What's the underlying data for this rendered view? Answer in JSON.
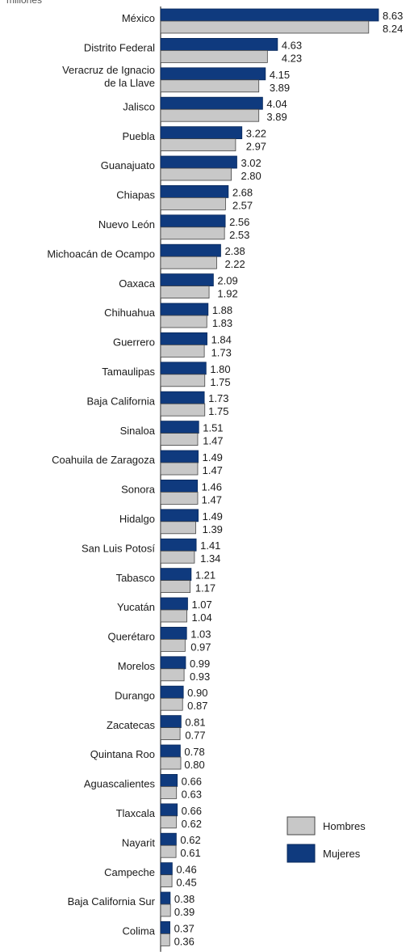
{
  "chart_data": {
    "type": "bar",
    "orientation": "horizontal",
    "unit_label": "millones",
    "categories": [
      "México",
      "Distrito Federal",
      "Veracruz de Ignacio de la Llave",
      "Jalisco",
      "Puebla",
      "Guanajuato",
      "Chiapas",
      "Nuevo León",
      "Michoacán de Ocampo",
      "Oaxaca",
      "Chihuahua",
      "Guerrero",
      "Tamaulipas",
      "Baja California",
      "Sinaloa",
      "Coahuila de Zaragoza",
      "Sonora",
      "Hidalgo",
      "San Luis Potosí",
      "Tabasco",
      "Yucatán",
      "Querétaro",
      "Morelos",
      "Durango",
      "Zacatecas",
      "Quintana Roo",
      "Aguascalientes",
      "Tlaxcala",
      "Nayarit",
      "Campeche",
      "Baja California Sur",
      "Colima"
    ],
    "series": [
      {
        "name": "Mujeres",
        "color": "#0f3a7e",
        "values": [
          8.63,
          4.63,
          4.15,
          4.04,
          3.22,
          3.02,
          2.68,
          2.56,
          2.38,
          2.09,
          1.88,
          1.84,
          1.8,
          1.73,
          1.51,
          1.49,
          1.46,
          1.49,
          1.41,
          1.21,
          1.07,
          1.03,
          0.99,
          0.9,
          0.81,
          0.78,
          0.66,
          0.66,
          0.62,
          0.46,
          0.38,
          0.37
        ],
        "labels": [
          "8.63",
          "4.63",
          "4.15",
          "4.04",
          "3.22",
          "3.02",
          "2.68",
          "2.56",
          "2.38",
          "2.09",
          "1.88",
          "1.84",
          "1.80",
          "1.73",
          "1.51",
          "1.49",
          "1.46",
          "1.49",
          "1.41",
          "1.21",
          "1.07",
          "1.03",
          "0.99",
          "0.90",
          "0.81",
          "0.78",
          "0.66",
          "0.66",
          "0.62",
          "0.46",
          "0.38",
          "0.37"
        ]
      },
      {
        "name": "Hombres",
        "color": "#c8c8c8",
        "values": [
          8.24,
          4.23,
          3.89,
          3.89,
          2.97,
          2.8,
          2.57,
          2.53,
          2.22,
          1.92,
          1.83,
          1.73,
          1.75,
          1.75,
          1.47,
          1.47,
          1.47,
          1.39,
          1.34,
          1.17,
          1.04,
          0.97,
          0.93,
          0.87,
          0.77,
          0.8,
          0.63,
          0.62,
          0.61,
          0.45,
          0.39,
          0.36
        ],
        "labels": [
          "8.24",
          "4.23",
          "3.89",
          "3.89",
          "2.97",
          "2.80",
          "2.57",
          "2.53",
          "2.22",
          "1.92",
          "1.83",
          "1.73",
          "1.75",
          "1.75",
          "1.47",
          "1.47",
          "1.47",
          "1.39",
          "1.34",
          "1.17",
          "1.04",
          "0.97",
          "0.93",
          "0.87",
          "0.77",
          "0.80",
          "0.63",
          "0.62",
          "0.61",
          "0.45",
          "0.39",
          "0.36"
        ]
      }
    ],
    "xlim": [
      0,
      8.63
    ],
    "legend": {
      "placement": "bottom-right",
      "order": [
        "Hombres",
        "Mujeres"
      ]
    },
    "grid": false
  }
}
